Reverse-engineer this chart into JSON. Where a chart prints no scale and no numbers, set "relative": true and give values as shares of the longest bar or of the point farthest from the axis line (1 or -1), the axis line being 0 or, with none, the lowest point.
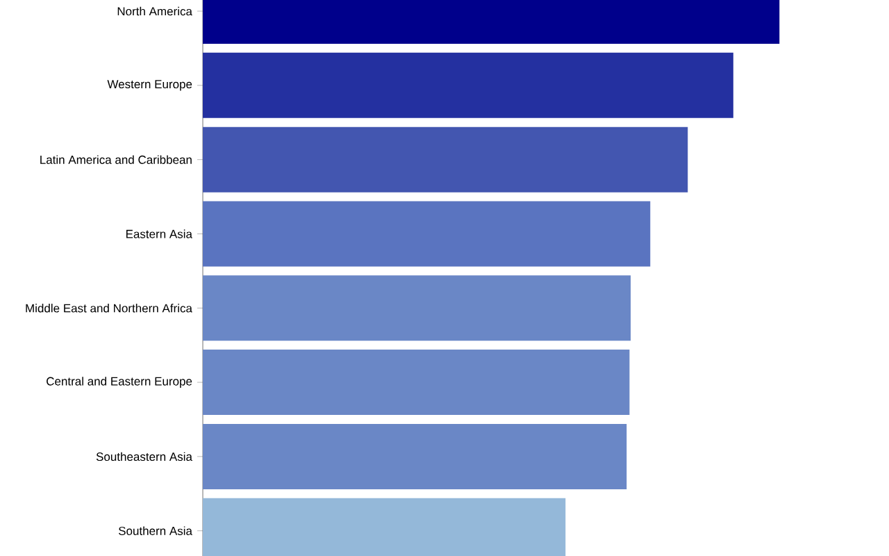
{
  "chart_data": {
    "type": "bar",
    "orientation": "horizontal",
    "relative": true,
    "categories": [
      "North America",
      "Western Europe",
      "Latin America and Caribbean",
      "Eastern Asia",
      "Middle East and Northern Africa",
      "Central and Eastern Europe",
      "Southeastern Asia",
      "Southern Asia"
    ],
    "values": [
      1,
      0.92,
      0.841,
      0.776,
      0.742,
      0.74,
      0.735,
      0.629
    ],
    "colors": [
      "#00008b",
      "#2430a0",
      "#4356b0",
      "#5a74c0",
      "#6a87c6",
      "#6a87c6",
      "#6a87c6",
      "#94b8d9"
    ]
  }
}
